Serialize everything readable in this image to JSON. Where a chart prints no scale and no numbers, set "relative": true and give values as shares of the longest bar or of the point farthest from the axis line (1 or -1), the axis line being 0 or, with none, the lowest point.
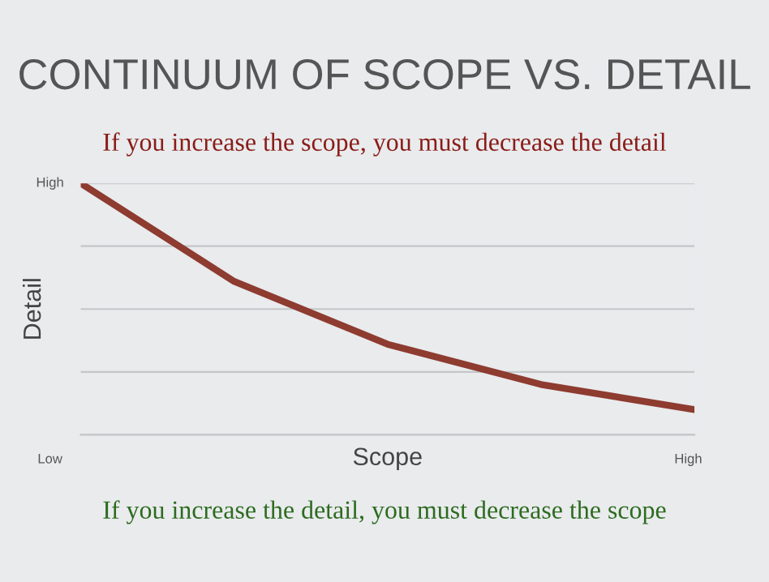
{
  "chart_data": {
    "type": "line",
    "title": "CONTINUUM OF SCOPE VS. DETAIL",
    "subtitle": "If you increase the scope, you must decrease the detail",
    "annotations": [
      "If you increase the detail, you must decrease the scope",
      "High",
      "Low",
      "High"
    ],
    "xlabel": "Scope",
    "ylabel": "Detail",
    "relative": true,
    "categories": [
      null,
      null,
      null,
      null,
      null
    ],
    "series": [
      {
        "color": "#8e3b30",
        "values": [
          1,
          0.61,
          0.36,
          0.2,
          0.1
        ]
      }
    ],
    "grid": "y",
    "legend": false,
    "marker": "none",
    "line_style": "solid"
  }
}
